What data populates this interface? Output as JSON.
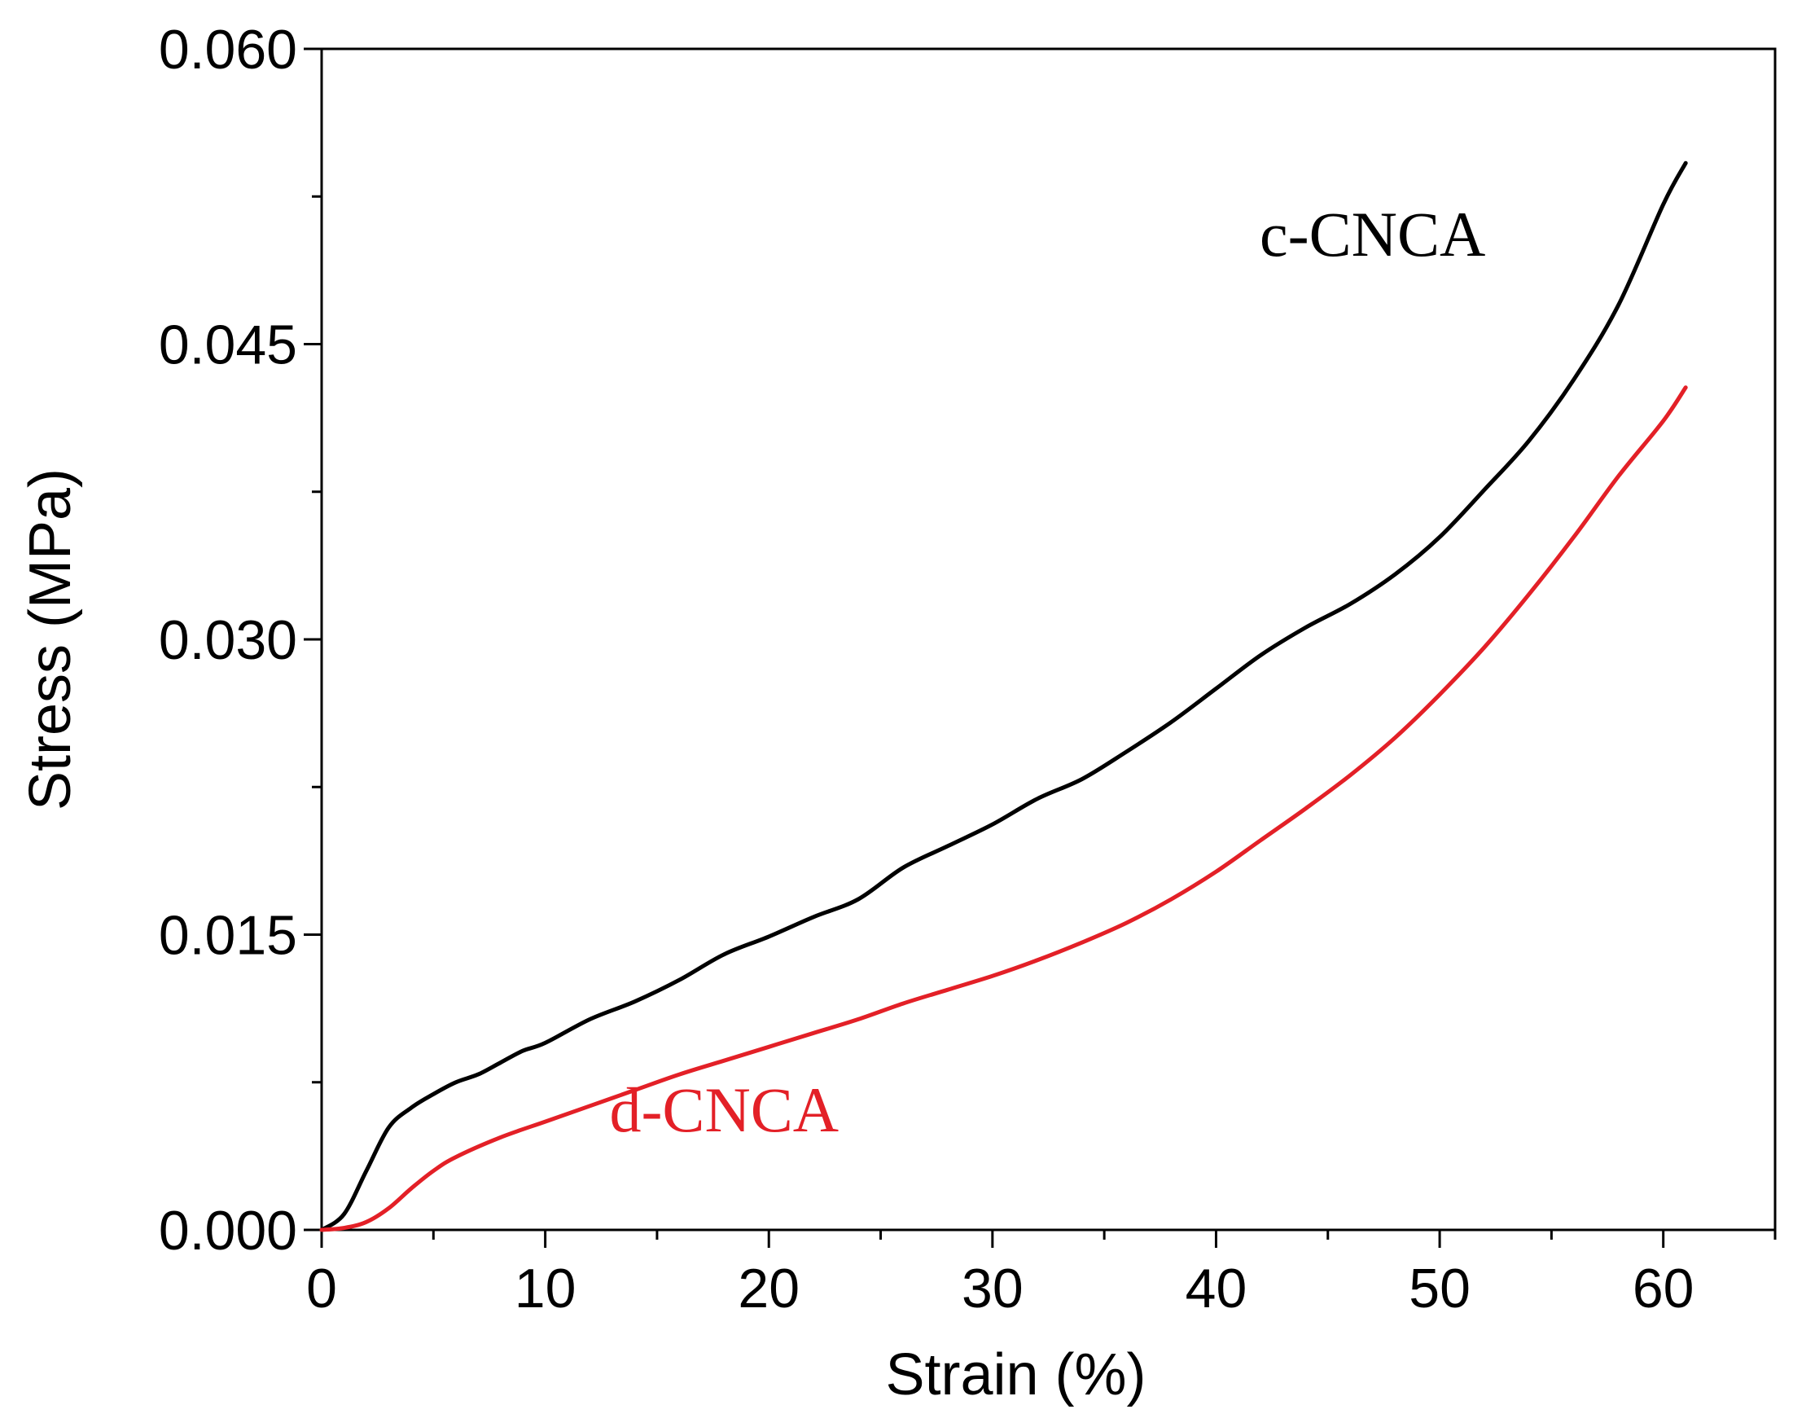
{
  "chart_data": {
    "type": "line",
    "title": "",
    "xlabel": "Strain (%)",
    "ylabel": "Stress (MPa)",
    "xlim": [
      0,
      65
    ],
    "ylim": [
      0,
      0.06
    ],
    "x_ticks": [
      0,
      10,
      20,
      30,
      40,
      50,
      60
    ],
    "x_tick_labels": [
      "0",
      "10",
      "20",
      "30",
      "40",
      "50",
      "60"
    ],
    "x_minor_ticks": [
      5,
      15,
      25,
      35,
      45,
      55,
      65
    ],
    "y_ticks": [
      0,
      0.015,
      0.03,
      0.045,
      0.06
    ],
    "y_tick_labels": [
      "0.000",
      "0.015",
      "0.030",
      "0.045",
      "0.060"
    ],
    "y_minor_ticks": [
      0.0075,
      0.0225,
      0.0375,
      0.0525
    ],
    "grid": false,
    "legend": "inline labels",
    "series": [
      {
        "name": "c-CNCA",
        "color": "#000000",
        "x": [
          0,
          1,
          2,
          3,
          4,
          5,
          6,
          7,
          8,
          9,
          10,
          12,
          14,
          16,
          18,
          20,
          22,
          24,
          26,
          28,
          30,
          32,
          34,
          36,
          38,
          40,
          42,
          44,
          46,
          48,
          50,
          52,
          54,
          56,
          58,
          60,
          61
        ],
        "y": [
          0,
          0.0008,
          0.003,
          0.0052,
          0.0062,
          0.0069,
          0.0075,
          0.0079,
          0.0085,
          0.0091,
          0.0095,
          0.0107,
          0.0116,
          0.0127,
          0.014,
          0.0149,
          0.0159,
          0.0168,
          0.0184,
          0.0195,
          0.0206,
          0.0219,
          0.0229,
          0.0243,
          0.0258,
          0.0275,
          0.0292,
          0.0306,
          0.0318,
          0.0333,
          0.0352,
          0.0376,
          0.0401,
          0.0432,
          0.047,
          0.0521,
          0.0542
        ]
      },
      {
        "name": "d-CNCA",
        "color": "#e32027",
        "x": [
          0,
          1,
          2,
          3,
          4,
          5,
          6,
          8,
          10,
          12,
          14,
          16,
          18,
          20,
          22,
          24,
          26,
          28,
          30,
          32,
          34,
          36,
          38,
          40,
          42,
          44,
          46,
          48,
          50,
          52,
          54,
          56,
          58,
          60,
          61
        ],
        "y": [
          0,
          0.0001,
          0.0004,
          0.0011,
          0.0021,
          0.003,
          0.0037,
          0.0047,
          0.0055,
          0.0063,
          0.0071,
          0.0079,
          0.0086,
          0.0093,
          0.01,
          0.0107,
          0.0115,
          0.0122,
          0.0129,
          0.0137,
          0.0146,
          0.0156,
          0.0168,
          0.0182,
          0.0198,
          0.0214,
          0.0231,
          0.025,
          0.0272,
          0.0296,
          0.0323,
          0.0352,
          0.0383,
          0.0411,
          0.0428
        ]
      }
    ],
    "annotations": [
      {
        "text": "c-CNCA",
        "x": 47,
        "y": 0.0495,
        "color": "#000000"
      },
      {
        "text": "d-CNCA",
        "x": 18,
        "y": 0.005,
        "color": "#e32027"
      }
    ]
  }
}
